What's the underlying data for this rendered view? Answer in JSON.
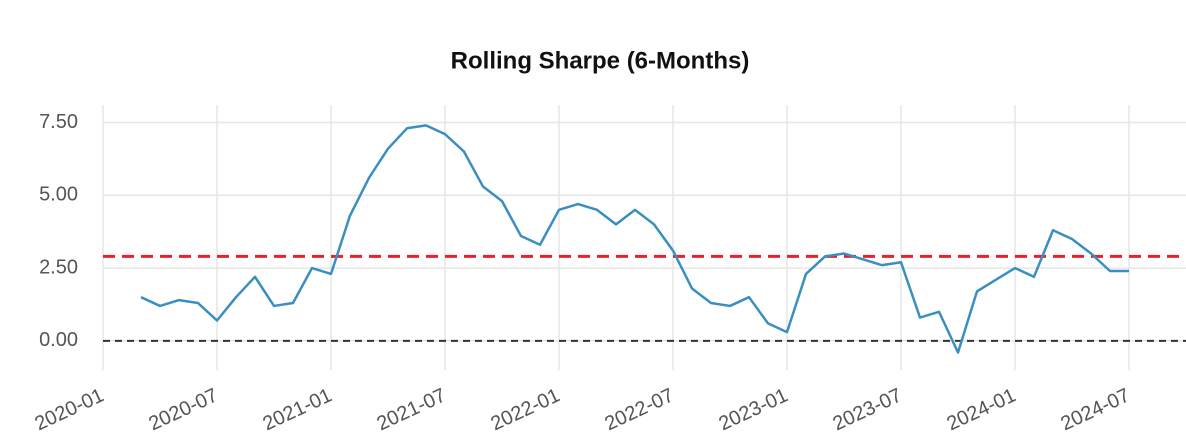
{
  "chart_data": {
    "type": "line",
    "title": "Rolling Sharpe (6-Months)",
    "x": [
      "2020-03",
      "2020-04",
      "2020-05",
      "2020-06",
      "2020-07",
      "2020-08",
      "2020-09",
      "2020-10",
      "2020-11",
      "2020-12",
      "2021-01",
      "2021-02",
      "2021-03",
      "2021-04",
      "2021-05",
      "2021-06",
      "2021-07",
      "2021-08",
      "2021-09",
      "2021-10",
      "2021-11",
      "2021-12",
      "2022-01",
      "2022-02",
      "2022-03",
      "2022-04",
      "2022-05",
      "2022-06",
      "2022-07",
      "2022-08",
      "2022-09",
      "2022-10",
      "2022-11",
      "2022-12",
      "2023-01",
      "2023-02",
      "2023-03",
      "2023-04",
      "2023-05",
      "2023-06",
      "2023-07",
      "2023-08",
      "2023-09",
      "2023-10",
      "2023-11",
      "2023-12",
      "2024-01",
      "2024-02",
      "2024-03",
      "2024-04",
      "2024-05",
      "2024-06",
      "2024-07"
    ],
    "series": [
      {
        "color": "#3a8fc0",
        "values": [
          1.5,
          1.2,
          1.4,
          1.3,
          0.7,
          1.5,
          2.2,
          1.2,
          1.3,
          2.5,
          2.3,
          4.3,
          5.6,
          6.6,
          7.3,
          7.4,
          7.1,
          6.5,
          5.3,
          4.8,
          3.6,
          3.3,
          4.5,
          4.7,
          4.5,
          4.0,
          4.5,
          4.0,
          3.1,
          1.8,
          1.3,
          1.2,
          1.5,
          0.6,
          0.3,
          2.3,
          2.9,
          3.0,
          2.8,
          2.6,
          2.7,
          0.8,
          1.0,
          -0.4,
          1.7,
          2.1,
          2.5,
          2.2,
          3.8,
          3.5,
          3.0,
          2.4,
          2.4
        ]
      }
    ],
    "hlines": [
      {
        "value": 2.9,
        "color": "#e8202a"
      },
      {
        "value": 0,
        "color": "#333333"
      }
    ],
    "xlim": [
      "2020-01",
      "2024-10"
    ],
    "xticks": [
      "2020-01",
      "2020-07",
      "2021-01",
      "2021-07",
      "2022-01",
      "2022-07",
      "2023-01",
      "2023-07",
      "2024-01",
      "2024-07"
    ],
    "ylim": [
      -1,
      8.1
    ],
    "yticks": [
      {
        "value": 0,
        "label": "0.00"
      },
      {
        "value": 2.5,
        "label": "2.50"
      },
      {
        "value": 5,
        "label": "5.00"
      },
      {
        "value": 7.5,
        "label": "7.50"
      }
    ],
    "grid": true
  }
}
